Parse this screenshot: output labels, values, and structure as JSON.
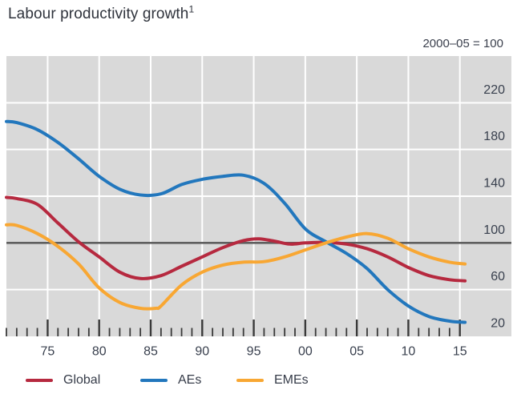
{
  "header": {
    "title": "Labour productivity growth",
    "footnote_marker": "1",
    "unit_label": "2000–05 = 100"
  },
  "legend": [
    {
      "label": "Global",
      "color": "#b6293f"
    },
    {
      "label": "AEs",
      "color": "#2277bd"
    },
    {
      "label": "EMEs",
      "color": "#f8a733"
    }
  ],
  "style": {
    "plot_background": "#d9d9d9",
    "gridline_color": "#ffffff",
    "baseline_color": "#5f5f5f",
    "tick_color": "#3a3a3a",
    "axis_text_color": "#39404e"
  },
  "chart_data": {
    "type": "line",
    "title": "Labour productivity growth",
    "unit_note": "2000–05 = 100",
    "grid": "on",
    "legend_position": "bottom",
    "x_domain": [
      1971,
      2020
    ],
    "y_domain": [
      20,
      260
    ],
    "baseline_value": 100,
    "y_gridline_values": [
      60,
      140,
      180,
      220
    ],
    "y_tick_labels": [
      {
        "value": 220,
        "label": "220"
      },
      {
        "value": 180,
        "label": "180"
      },
      {
        "value": 140,
        "label": "140"
      },
      {
        "value": 100,
        "label": "100"
      },
      {
        "value": 60,
        "label": "60"
      },
      {
        "value": 20,
        "label": "20"
      }
    ],
    "x_major_ticks": [
      {
        "year": 1975,
        "label": "75"
      },
      {
        "year": 1980,
        "label": "80"
      },
      {
        "year": 1985,
        "label": "85"
      },
      {
        "year": 1990,
        "label": "90"
      },
      {
        "year": 1995,
        "label": "95"
      },
      {
        "year": 2000,
        "label": "00"
      },
      {
        "year": 2005,
        "label": "05"
      },
      {
        "year": 2010,
        "label": "10"
      },
      {
        "year": 2015,
        "label": "15"
      }
    ],
    "minor_ticks": {
      "start_year": 1971,
      "end_year": 2015,
      "step": 1
    },
    "series": [
      {
        "name": "Global",
        "color": "#b6293f",
        "points": [
          [
            1971,
            139
          ],
          [
            1972,
            138
          ],
          [
            1974,
            133
          ],
          [
            1976,
            117
          ],
          [
            1978,
            101
          ],
          [
            1980,
            88
          ],
          [
            1982,
            75
          ],
          [
            1984,
            69.5
          ],
          [
            1986,
            72
          ],
          [
            1988,
            80
          ],
          [
            1990,
            88
          ],
          [
            1992,
            96
          ],
          [
            1994,
            102
          ],
          [
            1995.5,
            103.5
          ],
          [
            1997,
            101.5
          ],
          [
            1998.5,
            99
          ],
          [
            2000,
            100
          ],
          [
            2002,
            100.5
          ],
          [
            2004,
            99
          ],
          [
            2006,
            95
          ],
          [
            2008,
            88
          ],
          [
            2010,
            79
          ],
          [
            2012,
            72
          ],
          [
            2014,
            68.5
          ],
          [
            2015.5,
            67.5
          ]
        ]
      },
      {
        "name": "AEs",
        "color": "#2277bd",
        "points": [
          [
            1971,
            204
          ],
          [
            1972,
            203
          ],
          [
            1974,
            197
          ],
          [
            1976,
            186
          ],
          [
            1978,
            172
          ],
          [
            1980,
            157
          ],
          [
            1982,
            146
          ],
          [
            1984,
            141
          ],
          [
            1986,
            142
          ],
          [
            1988,
            150
          ],
          [
            1990,
            154.5
          ],
          [
            1992,
            157
          ],
          [
            1994,
            158
          ],
          [
            1996,
            151
          ],
          [
            1998,
            134
          ],
          [
            2000,
            112
          ],
          [
            2002,
            101
          ],
          [
            2004,
            91
          ],
          [
            2006,
            78
          ],
          [
            2008,
            60
          ],
          [
            2010,
            46
          ],
          [
            2012,
            37
          ],
          [
            2014,
            33
          ],
          [
            2015.5,
            32
          ]
        ]
      },
      {
        "name": "EMEs",
        "color": "#f8a733",
        "points": [
          [
            1971,
            115.5
          ],
          [
            1972,
            115
          ],
          [
            1974,
            108
          ],
          [
            1976,
            97
          ],
          [
            1978,
            82
          ],
          [
            1980,
            61.5
          ],
          [
            1982,
            49
          ],
          [
            1984,
            44
          ],
          [
            1985.5,
            44
          ],
          [
            1986,
            46
          ],
          [
            1988,
            64
          ],
          [
            1990,
            75
          ],
          [
            1992,
            81
          ],
          [
            1994,
            83.5
          ],
          [
            1996,
            84
          ],
          [
            1998,
            88
          ],
          [
            2000,
            94
          ],
          [
            2002,
            100
          ],
          [
            2004,
            105
          ],
          [
            2006,
            108
          ],
          [
            2008,
            104
          ],
          [
            2010,
            95
          ],
          [
            2012,
            88
          ],
          [
            2014,
            83.5
          ],
          [
            2015.5,
            82
          ]
        ]
      }
    ]
  }
}
